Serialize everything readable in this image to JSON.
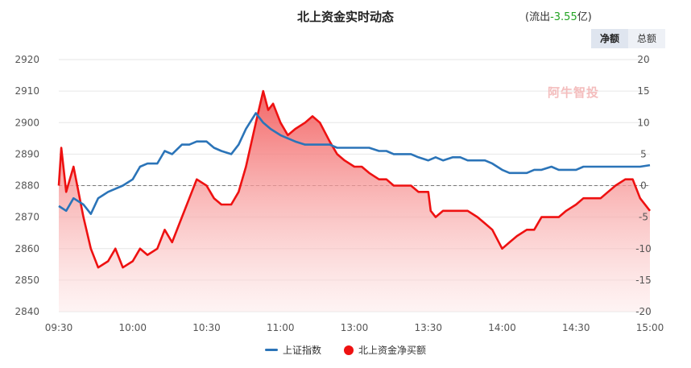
{
  "header": {
    "title": "北上资金实时动态",
    "flow_prefix": "(流出",
    "flow_value": "-3.55",
    "flow_suffix": "亿)",
    "tabs": [
      "净额",
      "总额"
    ],
    "active_tab": 0
  },
  "watermark": "阿牛智投",
  "colors": {
    "index_line": "#2b74b8",
    "flow_line": "#ee1111",
    "flow_fill": "#f36b6b",
    "flow_value": "#22a322"
  },
  "chart_data": {
    "type": "line",
    "x_ticks": [
      "09:30",
      "10:00",
      "10:30",
      "11:00",
      "13:00",
      "13:30",
      "14:00",
      "14:30",
      "15:00"
    ],
    "y_left": {
      "ticks": [
        2840,
        2850,
        2860,
        2870,
        2880,
        2890,
        2900,
        2910,
        2920
      ],
      "range": [
        2840,
        2920
      ]
    },
    "y_right": {
      "ticks": [
        -20,
        -15,
        -10,
        -5,
        0,
        5,
        10,
        15,
        20
      ],
      "range": [
        -20,
        20
      ]
    },
    "zero_line": "dashed",
    "series": [
      {
        "name": "上证指数",
        "axis": "left",
        "x": [
          "09:30",
          "09:33",
          "09:36",
          "09:40",
          "09:43",
          "09:46",
          "09:50",
          "09:53",
          "09:56",
          "10:00",
          "10:03",
          "10:06",
          "10:10",
          "10:13",
          "10:16",
          "10:20",
          "10:23",
          "10:26",
          "10:30",
          "10:33",
          "10:36",
          "10:40",
          "10:43",
          "10:46",
          "10:50",
          "10:53",
          "10:56",
          "11:00",
          "11:03",
          "11:06",
          "11:10",
          "11:13",
          "11:16",
          "11:20",
          "11:23",
          "11:26",
          "11:30",
          "13:03",
          "13:06",
          "13:10",
          "13:13",
          "13:16",
          "13:20",
          "13:23",
          "13:26",
          "13:30",
          "13:33",
          "13:36",
          "13:40",
          "13:43",
          "13:46",
          "13:50",
          "13:53",
          "13:56",
          "14:00",
          "14:03",
          "14:06",
          "14:10",
          "14:13",
          "14:16",
          "14:20",
          "14:23",
          "14:26",
          "14:30",
          "14:33",
          "14:36",
          "14:40",
          "14:43",
          "14:46",
          "14:50",
          "14:53",
          "14:56",
          "15:00"
        ],
        "values": [
          2873.5,
          2872,
          2876,
          2874,
          2871,
          2876,
          2878,
          2879,
          2880,
          2882,
          2886,
          2887,
          2887,
          2891,
          2890,
          2893,
          2893,
          2894,
          2894,
          2892,
          2891,
          2890,
          2893,
          2898,
          2903,
          2900,
          2898,
          2896,
          2895,
          2894,
          2893,
          2893,
          2893,
          2893,
          2892,
          2892,
          2892,
          2892,
          2892,
          2891,
          2891,
          2890,
          2890,
          2890,
          2889,
          2888,
          2889,
          2888,
          2889,
          2889,
          2888,
          2888,
          2888,
          2887,
          2885,
          2884,
          2884,
          2884,
          2885,
          2885,
          2886,
          2885,
          2885,
          2885,
          2886,
          2886,
          2886,
          2886,
          2886,
          2886,
          2886,
          2886,
          2886.5
        ]
      },
      {
        "name": "北上资金净买额",
        "axis": "right",
        "x": [
          "09:30",
          "09:31",
          "09:33",
          "09:36",
          "09:40",
          "09:43",
          "09:46",
          "09:50",
          "09:53",
          "09:56",
          "10:00",
          "10:03",
          "10:06",
          "10:10",
          "10:13",
          "10:16",
          "10:20",
          "10:23",
          "10:26",
          "10:30",
          "10:33",
          "10:36",
          "10:40",
          "10:43",
          "10:46",
          "10:50",
          "10:53",
          "10:55",
          "10:57",
          "11:00",
          "11:03",
          "11:06",
          "11:10",
          "11:13",
          "11:16",
          "11:20",
          "11:23",
          "11:26",
          "11:30",
          "13:03",
          "13:06",
          "13:10",
          "13:13",
          "13:16",
          "13:20",
          "13:23",
          "13:26",
          "13:30",
          "13:31",
          "13:33",
          "13:36",
          "13:40",
          "13:43",
          "13:46",
          "13:50",
          "13:53",
          "13:56",
          "14:00",
          "14:03",
          "14:06",
          "14:10",
          "14:13",
          "14:16",
          "14:20",
          "14:23",
          "14:26",
          "14:30",
          "14:33",
          "14:36",
          "14:40",
          "14:43",
          "14:46",
          "14:50",
          "14:53",
          "14:56",
          "15:00"
        ],
        "values": [
          0,
          6,
          -1,
          3,
          -5,
          -10,
          -13,
          -12,
          -10,
          -13,
          -12,
          -10,
          -11,
          -10,
          -7,
          -9,
          -5,
          -2,
          1,
          0,
          -2,
          -3,
          -3,
          -1,
          3,
          10,
          15,
          12,
          13,
          10,
          8,
          9,
          10,
          11,
          10,
          7,
          5,
          4,
          3,
          3,
          2,
          1,
          1,
          0,
          0,
          0,
          -1,
          -1,
          -4,
          -5,
          -4,
          -4,
          -4,
          -4,
          -5,
          -6,
          -7,
          -10,
          -9,
          -8,
          -7,
          -7,
          -5,
          -5,
          -5,
          -4,
          -3,
          -2,
          -2,
          -2,
          -1,
          0,
          1,
          1,
          -2,
          -4
        ]
      }
    ]
  },
  "legend": [
    {
      "label": "上证指数",
      "color": "#2b74b8",
      "symbol": "line"
    },
    {
      "label": "北上资金净买额",
      "color": "#ee1111",
      "symbol": "dot"
    }
  ]
}
